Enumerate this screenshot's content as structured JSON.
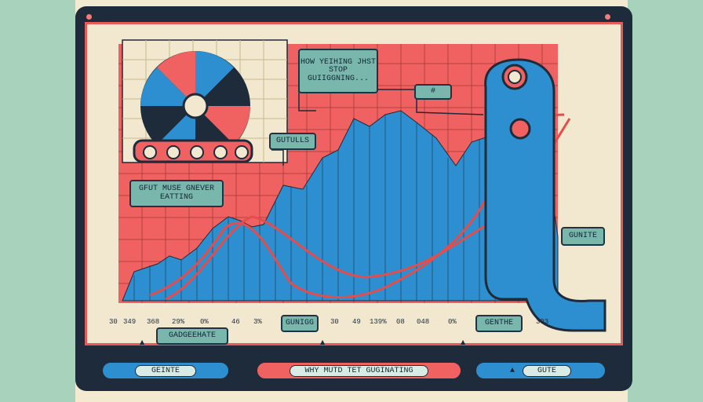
{
  "window": {
    "title_button": "",
    "close_button": ""
  },
  "labels": {
    "speech_bubble": "HOW YEIHING\nJHST STOP\nGUIIGGNING...",
    "gutulls": "GUTULLS",
    "gfut_muse": "GFUT MUSE\nGNEVER EATTING",
    "gunite": "GUNITE",
    "gadgeehate": "GADGEEHATE",
    "gunigg": "GUNIGG",
    "genthe": "GENTHE",
    "small_tag": "#"
  },
  "axis": {
    "ticks_left": [
      "30",
      "349",
      "368",
      "29%",
      "0%"
    ],
    "ticks_middle": [
      "46",
      "3%"
    ],
    "ticks_right": [
      "30",
      "49",
      "139%",
      "08",
      "048",
      "0%"
    ],
    "tick_far_right": "393"
  },
  "footer": {
    "left_button": "GEINTE",
    "center_button": "WHY MUTD TET GUGINATING",
    "right_button": "GUTE"
  },
  "colors": {
    "accent_red": "#f06363",
    "accent_blue": "#2d8fcf",
    "teal": "#79b7ad",
    "navy": "#1e2b3a",
    "cream": "#f2e8cf"
  }
}
